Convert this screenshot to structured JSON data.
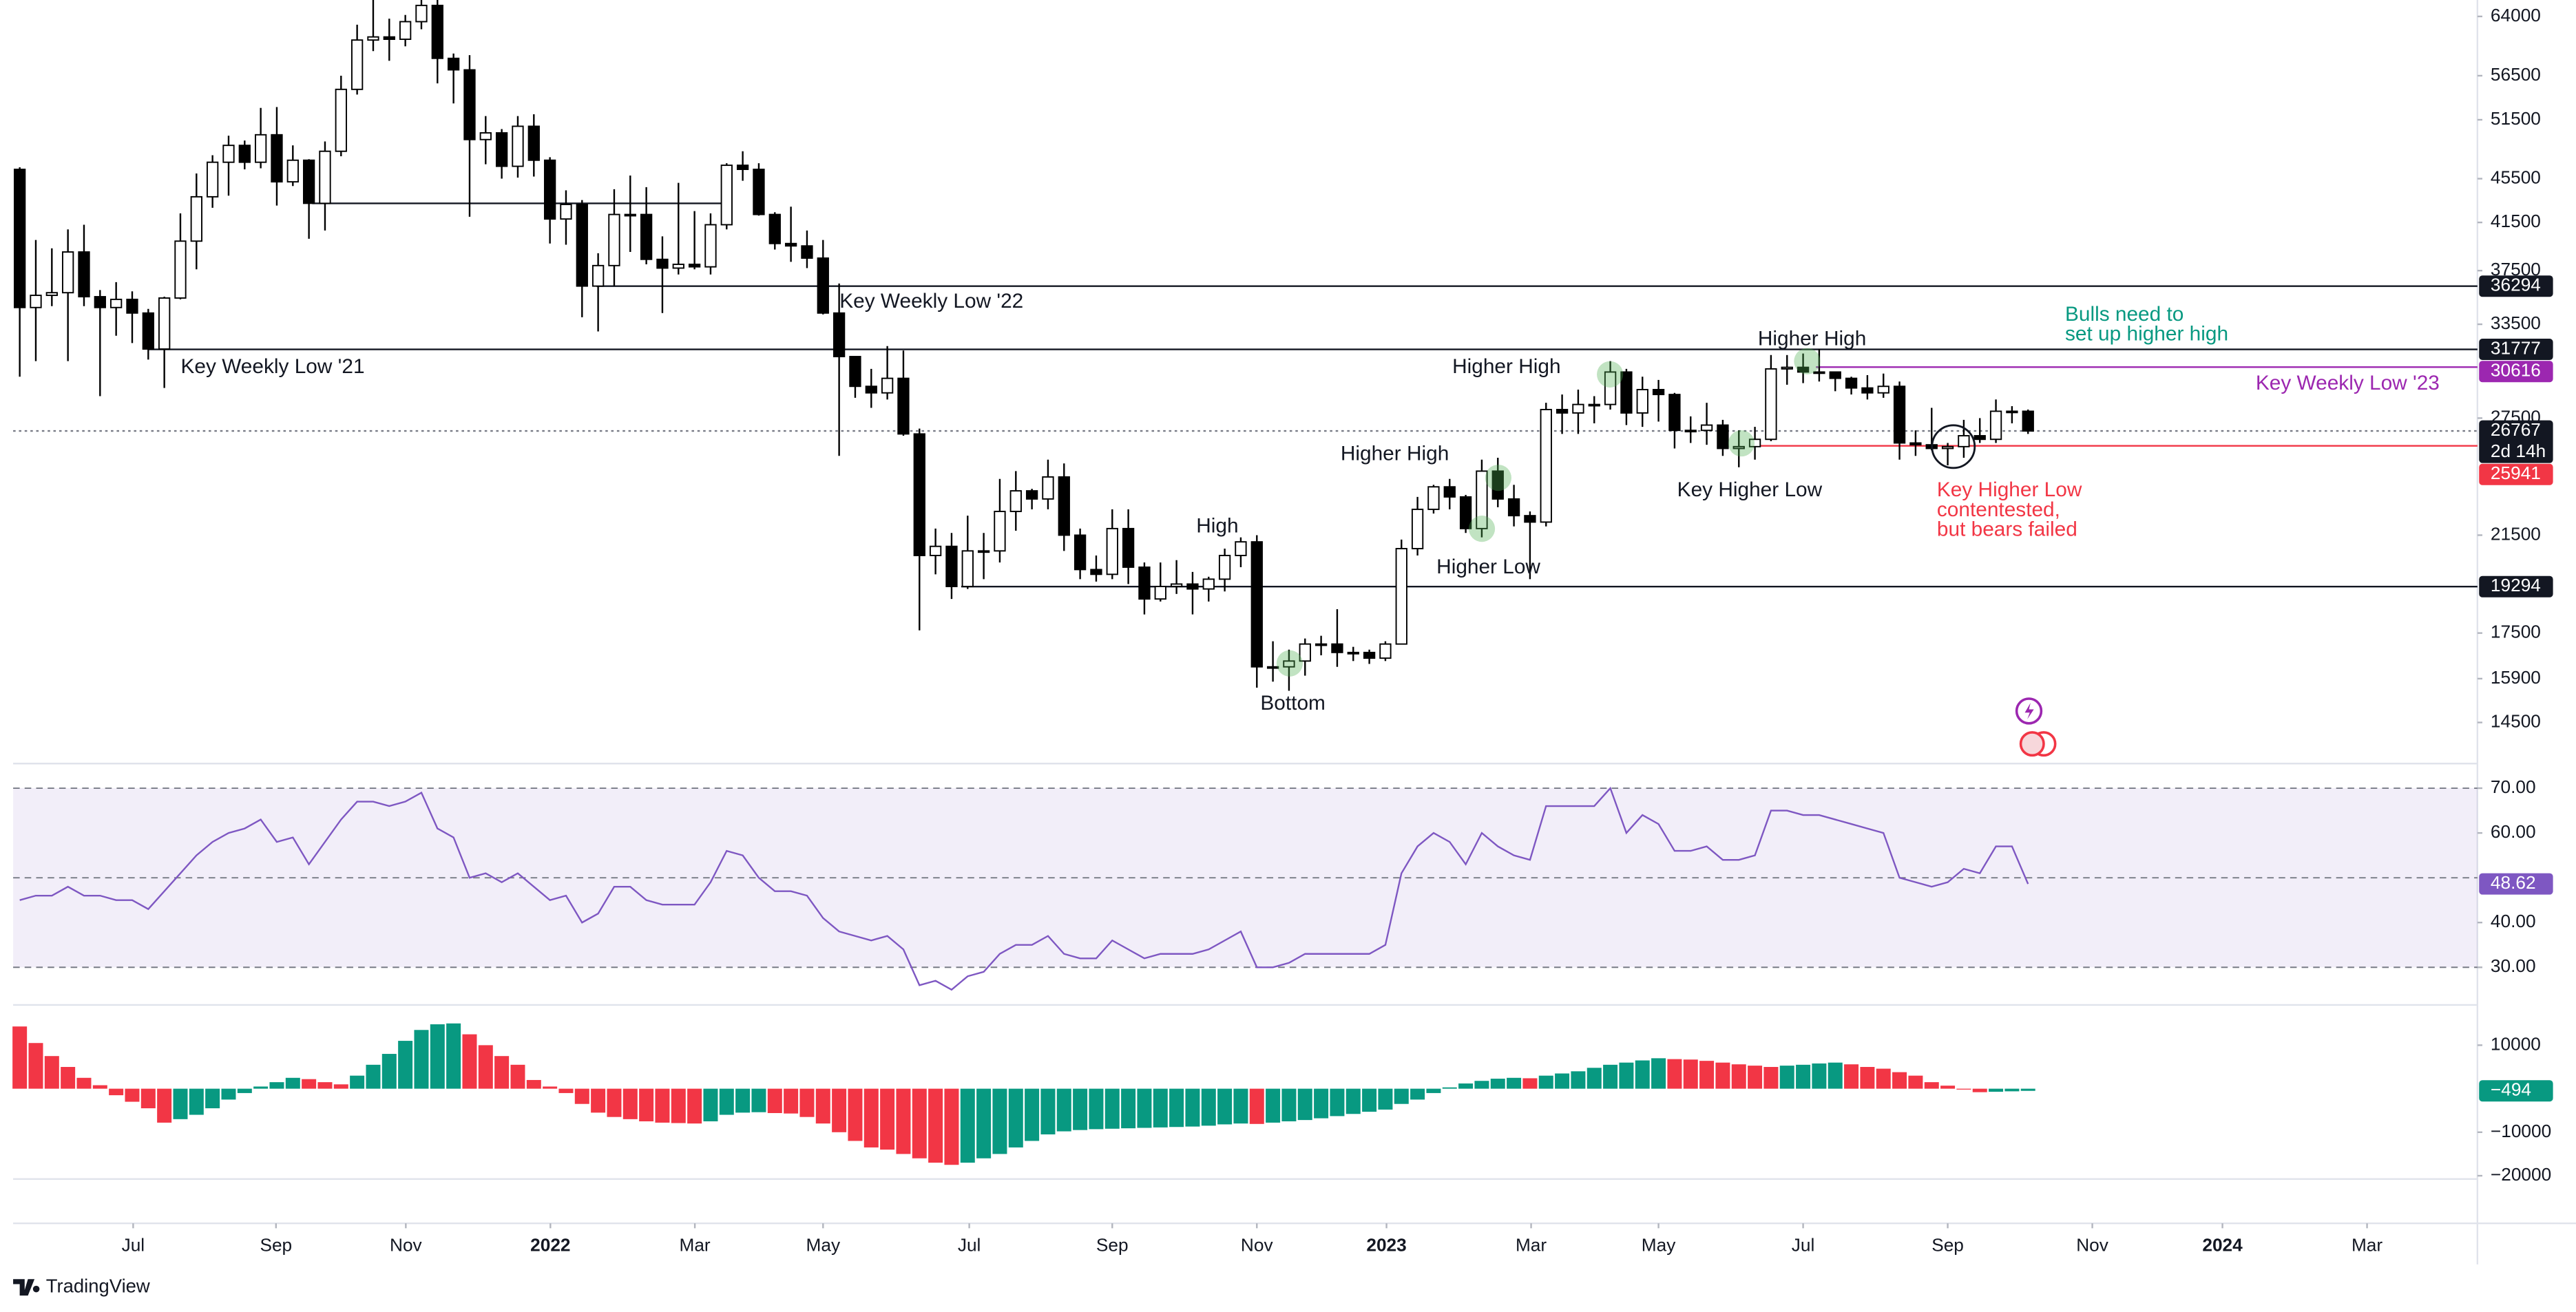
{
  "chart_data": [
    {
      "type": "candlestick",
      "log": true,
      "ylim": [
        13300,
        66250
      ],
      "yticks": [
        64000,
        56500,
        51500,
        45500,
        41500,
        37500,
        33500,
        27500,
        21500,
        17500,
        15900,
        14500
      ],
      "xlim": [
        -0.41,
        152.97
      ],
      "xticks": [
        {
          "value": 7.06,
          "label": "Jul"
        },
        {
          "value": 15.95,
          "label": "Sep"
        },
        {
          "value": 24.03,
          "label": "Nov"
        },
        {
          "value": 33.03,
          "label": "2022"
        },
        {
          "value": 42.02,
          "label": "Mar"
        },
        {
          "value": 50.0,
          "label": "May"
        },
        {
          "value": 59.1,
          "label": "Jul"
        },
        {
          "value": 68.0,
          "label": "Sep"
        },
        {
          "value": 77.0,
          "label": "Nov"
        },
        {
          "value": 85.07,
          "label": "2023"
        },
        {
          "value": 94.07,
          "label": "Mar"
        },
        {
          "value": 102.0,
          "label": "May"
        },
        {
          "value": 111.0,
          "label": "Jul"
        },
        {
          "value": 120.0,
          "label": "Sep"
        },
        {
          "value": 129.0,
          "label": "Nov"
        },
        {
          "value": 137.1,
          "label": "2024"
        },
        {
          "value": 146.1,
          "label": "Mar"
        }
      ],
      "colors": {
        "up": "#ffffff",
        "down": "#000000",
        "outline": "#000000"
      },
      "open": [
        46400,
        34700,
        35600,
        35800,
        39000,
        35500,
        34700,
        35300,
        34300,
        31800,
        35400,
        39900,
        43800,
        47100,
        48800,
        47100,
        49900,
        45200,
        47300,
        43200,
        48200,
        54900,
        60900,
        61300,
        61000,
        63300,
        65500,
        58600,
        57200,
        49400,
        50100,
        46700,
        50800,
        47300,
        41800,
        43100,
        36300,
        37900,
        42200,
        42200,
        38400,
        37700,
        38000,
        37800,
        41300,
        46800,
        46400,
        42200,
        39700,
        39500,
        38500,
        34300,
        31300,
        29400,
        29000,
        29900,
        26600,
        20600,
        21000,
        19300,
        20800,
        20800,
        22600,
        23600,
        23200,
        24300,
        21500,
        20000,
        19800,
        21800,
        20100,
        18800,
        19300,
        19400,
        19200,
        19600,
        20600,
        21200,
        16300,
        16300,
        16500,
        17100,
        17100,
        16800,
        16800,
        16600,
        17100,
        20900,
        22700,
        23800,
        23300,
        21800,
        24600,
        23200,
        22400,
        22100,
        28000,
        27800,
        28300,
        28300,
        30300,
        27800,
        29200,
        28900,
        26800,
        26800,
        27100,
        25800,
        25900,
        26300,
        30500,
        30600,
        30300,
        30300,
        29900,
        29300,
        29000,
        29400,
        26100,
        26000,
        25800,
        25900,
        26500,
        26300,
        27900,
        27900
      ],
      "high": [
        46600,
        40000,
        39300,
        40900,
        41300,
        36000,
        36600,
        35900,
        34600,
        35500,
        42300,
        46000,
        47800,
        49800,
        49300,
        52800,
        52900,
        48800,
        47400,
        49200,
        56500,
        62900,
        67000,
        63700,
        64200,
        69000,
        66300,
        59200,
        59000,
        51900,
        50500,
        51900,
        52100,
        47600,
        44400,
        43500,
        38900,
        44500,
        45800,
        44700,
        40300,
        45100,
        42500,
        42300,
        47000,
        48200,
        47000,
        42400,
        42900,
        40800,
        40000,
        36500,
        31300,
        30500,
        32000,
        31700,
        26900,
        21800,
        21600,
        22400,
        21600,
        24200,
        24600,
        23700,
        25200,
        25000,
        21800,
        20600,
        22700,
        22700,
        20300,
        20300,
        20400,
        19900,
        19700,
        20900,
        21400,
        21500,
        17200,
        16900,
        17300,
        17400,
        18400,
        17000,
        16900,
        17200,
        21300,
        23300,
        23900,
        24200,
        23400,
        25200,
        25300,
        23900,
        22600,
        28400,
        28900,
        29200,
        28800,
        31000,
        30500,
        30000,
        29800,
        29000,
        27600,
        28400,
        27400,
        26800,
        27000,
        31400,
        31400,
        31500,
        31800,
        30300,
        30000,
        30100,
        30200,
        29700,
        26800,
        28100,
        26100,
        27400,
        27500,
        28600,
        28200,
        28000
      ],
      "low": [
        30000,
        31000,
        34800,
        31000,
        34800,
        28800,
        32700,
        32200,
        31100,
        29300,
        35300,
        37600,
        42800,
        43900,
        46400,
        46500,
        43000,
        44800,
        40100,
        40800,
        47700,
        54300,
        59500,
        58300,
        60100,
        62300,
        55600,
        53300,
        42000,
        46900,
        45500,
        45600,
        45700,
        39700,
        39600,
        34000,
        33000,
        36300,
        39000,
        38000,
        34300,
        37200,
        37600,
        37200,
        40900,
        45300,
        42100,
        39200,
        38200,
        37700,
        34200,
        25400,
        28700,
        28100,
        28600,
        26500,
        17600,
        19800,
        18800,
        19200,
        19600,
        20300,
        21700,
        22700,
        22700,
        20800,
        19600,
        19500,
        19600,
        19400,
        18200,
        18700,
        19000,
        18200,
        18700,
        19100,
        20100,
        15600,
        15800,
        15500,
        16000,
        16700,
        16300,
        16500,
        16400,
        16500,
        17100,
        20600,
        22500,
        22700,
        21600,
        21400,
        22800,
        21900,
        19600,
        21900,
        26600,
        26600,
        27200,
        28000,
        27100,
        27000,
        27300,
        25800,
        26100,
        26000,
        25400,
        24800,
        25200,
        26200,
        29500,
        29600,
        29700,
        29100,
        28900,
        28600,
        28700,
        25200,
        25400,
        25700,
        24900,
        25300,
        26100,
        26100,
        27200,
        26600
      ],
      "close": [
        34700,
        35600,
        35800,
        39000,
        35500,
        34700,
        35300,
        34300,
        31800,
        35400,
        39900,
        43800,
        47100,
        48800,
        47100,
        49900,
        45200,
        47300,
        43200,
        48200,
        54900,
        60900,
        61300,
        61000,
        63300,
        65500,
        58600,
        57200,
        49400,
        50100,
        46700,
        50800,
        47300,
        41800,
        43100,
        36300,
        37900,
        42200,
        42200,
        38400,
        37700,
        38000,
        37800,
        41300,
        46800,
        46400,
        42200,
        39700,
        39500,
        38500,
        34300,
        31300,
        29400,
        29000,
        29900,
        26600,
        20600,
        21000,
        19300,
        20800,
        20800,
        22600,
        23600,
        23200,
        24300,
        21500,
        20000,
        19800,
        21800,
        20100,
        18800,
        19300,
        19400,
        19200,
        19600,
        20600,
        21200,
        16300,
        16300,
        16500,
        17100,
        17100,
        16800,
        16800,
        16600,
        17100,
        20900,
        22700,
        23800,
        23300,
        21800,
        24600,
        23200,
        22400,
        22100,
        28000,
        27800,
        28300,
        28300,
        30300,
        27800,
        29200,
        28900,
        26800,
        26800,
        27100,
        25800,
        25900,
        26300,
        30500,
        30600,
        30300,
        30300,
        29900,
        29300,
        29000,
        29400,
        26100,
        26000,
        25800,
        25900,
        26500,
        26300,
        27900,
        27900,
        26767
      ],
      "levels": [
        {
          "value": 36294,
          "color": "#131722",
          "label_bg": "#131722",
          "from": 35.9
        },
        {
          "value": 31777,
          "color": "#131722",
          "label_bg": "#131722",
          "from": 8.0
        },
        {
          "value": 30616,
          "color": "#9c27b0",
          "label_bg": "#9c27b0",
          "from": 111.8
        },
        {
          "value": 26767,
          "color": "#787b86",
          "label_bg": "#131722",
          "from": -0.41,
          "dotted": true,
          "countdown": "2d 14h"
        },
        {
          "value": 25941,
          "color": "#f23645",
          "label_bg": "#f23645",
          "from": 108.0
        },
        {
          "value": 19294,
          "color": "#131722",
          "label_bg": "#131722",
          "from": 58.6
        }
      ],
      "segments": [
        {
          "value": 43200,
          "from": 18.2,
          "to": 44.1,
          "color": "#131722"
        }
      ],
      "annotations": [
        {
          "lines": [
            "Key Weekly Low '21"
          ],
          "color": "#131722"
        },
        {
          "lines": [
            "Key Weekly Low '22"
          ],
          "color": "#131722"
        },
        {
          "lines": [
            "Higher High"
          ],
          "color": "#131722"
        },
        {
          "lines": [
            "Higher High"
          ],
          "color": "#131722"
        },
        {
          "lines": [
            "Higher High"
          ],
          "color": "#131722"
        },
        {
          "lines": [
            "High"
          ],
          "color": "#131722"
        },
        {
          "lines": [
            "Bottom"
          ],
          "color": "#131722"
        },
        {
          "lines": [
            "Higher Low"
          ],
          "color": "#131722"
        },
        {
          "lines": [
            "Key Higher Low"
          ],
          "color": "#131722"
        },
        {
          "lines": [
            "Bulls need to",
            "set up higher high"
          ],
          "color": "#089981"
        },
        {
          "lines": [
            "Key Weekly Low '23"
          ],
          "color": "#9c27b0"
        },
        {
          "lines": [
            "Key Higher Low",
            "contentested,",
            "but bears failed"
          ],
          "color": "#f23645"
        }
      ]
    },
    {
      "type": "line",
      "color": "#7e57c2",
      "label_bg": "#7e57c2",
      "ylim": [
        21.6,
        75.5
      ],
      "yticks": [
        {
          "value": 30,
          "label": "30.00"
        },
        {
          "value": 40,
          "label": "40.00"
        },
        {
          "value": 60,
          "label": "60.00"
        },
        {
          "value": 70,
          "label": "70.00"
        }
      ],
      "band": [
        30,
        70
      ],
      "midline": 50,
      "values": [
        45,
        46,
        46,
        48,
        46,
        46,
        45,
        45,
        43,
        47,
        51,
        55,
        58,
        60,
        61,
        63,
        58,
        59,
        53,
        58,
        63,
        67,
        67,
        66,
        67,
        69,
        61,
        59,
        50,
        51,
        49,
        51,
        48,
        45,
        46,
        40,
        42,
        48,
        48,
        45,
        44,
        44,
        44,
        49,
        56,
        55,
        50,
        47,
        47,
        46,
        41,
        38,
        37,
        36,
        37,
        34,
        26,
        27,
        25,
        28,
        29,
        33,
        35,
        35,
        37,
        33,
        32,
        32,
        36,
        34,
        32,
        33,
        33,
        33,
        34,
        36,
        38,
        30,
        30,
        31,
        33,
        33,
        33,
        33,
        33,
        35,
        51,
        57,
        60,
        58,
        53,
        60,
        57,
        55,
        54,
        66,
        66,
        66,
        66,
        70,
        60,
        64,
        62,
        56,
        56,
        57,
        54,
        54,
        55,
        65,
        65,
        64,
        64,
        63,
        62,
        61,
        60,
        50,
        49,
        48,
        49,
        52,
        51,
        57,
        57,
        48.62
      ]
    },
    {
      "type": "bar",
      "colors": {
        "up": "#089981",
        "down": "#f23645"
      },
      "label_bg": "#089981",
      "ylim": [
        -20750,
        19250
      ],
      "yticks": [
        10000,
        {
          "value": -10000,
          "label": "−10000"
        },
        {
          "value": -20000,
          "label": "−20000"
        }
      ],
      "values": [
        14300,
        10500,
        7500,
        5000,
        2500,
        800,
        -1500,
        -3000,
        -4500,
        -7800,
        -7000,
        -6000,
        -4500,
        -2500,
        -1000,
        500,
        1500,
        2500,
        2200,
        1500,
        1000,
        3000,
        5500,
        8000,
        11000,
        13500,
        14800,
        15000,
        12500,
        10000,
        7500,
        5500,
        2000,
        500,
        -1000,
        -3500,
        -5500,
        -6500,
        -7000,
        -7500,
        -7800,
        -7900,
        -8000,
        -7500,
        -6000,
        -5500,
        -5400,
        -5600,
        -5700,
        -6500,
        -8000,
        -10000,
        -12000,
        -13500,
        -14000,
        -15000,
        -16000,
        -17000,
        -17500,
        -17000,
        -16000,
        -15000,
        -13500,
        -12000,
        -10500,
        -9800,
        -9500,
        -9300,
        -9200,
        -9100,
        -9000,
        -8900,
        -8800,
        -8700,
        -8500,
        -8200,
        -8000,
        -8100,
        -7800,
        -7500,
        -7200,
        -6800,
        -6300,
        -5800,
        -5300,
        -4800,
        -3500,
        -2500,
        -1000,
        300,
        1200,
        1800,
        2300,
        2500,
        2400,
        3000,
        3500,
        4000,
        4800,
        5500,
        6000,
        6500,
        7000,
        6800,
        6700,
        6400,
        6000,
        5600,
        5300,
        5000,
        5300,
        5500,
        5800,
        6000,
        5600,
        5000,
        4600,
        3800,
        3000,
        1500,
        700,
        -200,
        -800,
        -700,
        -600,
        -494
      ],
      "value_labels": [
        null,
        null,
        null,
        null,
        null,
        null,
        null,
        null,
        null,
        null,
        null,
        null,
        null,
        null,
        null,
        null,
        null,
        null,
        null,
        null,
        null,
        null,
        null,
        null,
        null,
        null,
        null,
        null,
        null,
        null,
        null,
        null,
        null,
        null,
        null,
        null,
        null,
        null,
        null,
        null,
        null,
        null,
        null,
        null,
        null,
        null,
        null,
        null,
        null,
        null,
        null,
        null,
        null,
        null,
        null,
        null,
        null,
        null,
        null,
        null,
        null,
        null,
        null,
        null,
        null,
        null,
        null,
        null,
        null,
        null,
        null,
        null,
        null,
        null,
        null,
        null,
        null,
        null,
        null,
        null,
        null,
        null,
        null,
        null,
        null,
        null,
        null,
        null,
        null,
        null,
        null,
        null,
        null,
        null,
        null,
        null,
        null,
        null,
        null,
        null,
        null,
        null,
        null,
        null,
        null,
        null,
        null,
        null,
        null,
        null,
        null,
        null,
        null,
        null,
        null,
        null,
        null,
        null,
        null,
        null,
        null,
        null,
        null,
        null,
        null,
        "−494"
      ]
    }
  ],
  "branding": "TradingView"
}
